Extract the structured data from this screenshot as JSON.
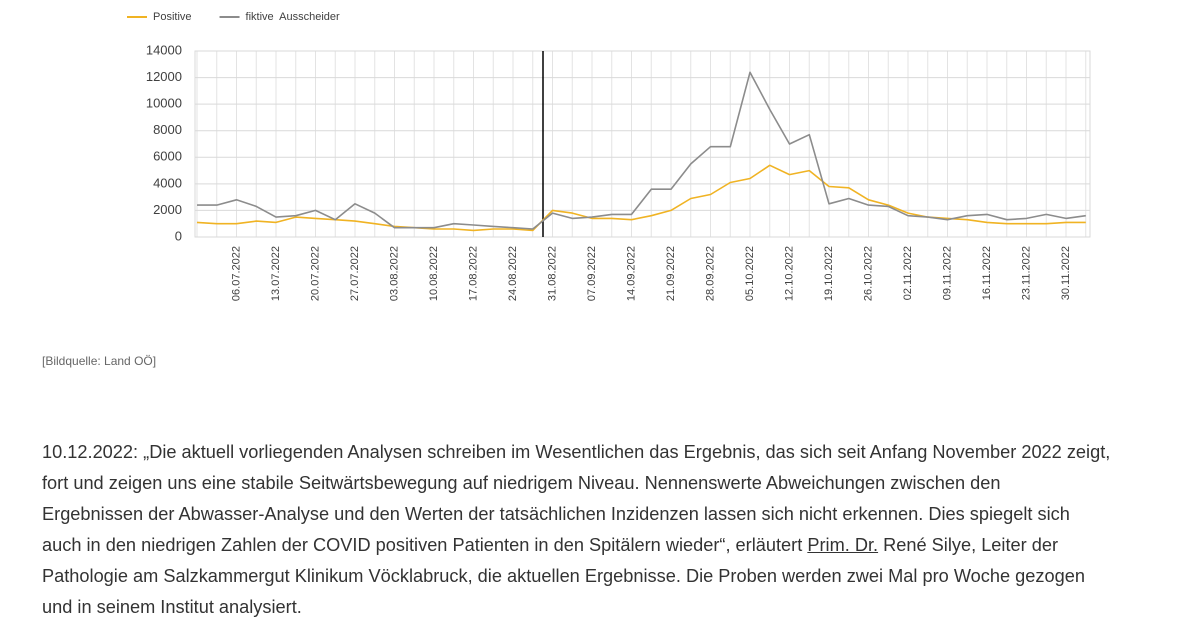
{
  "chart_data": {
    "type": "line",
    "categories": [
      null,
      null,
      "06.07.2022",
      null,
      "13.07.2022",
      null,
      "20.07.2022",
      null,
      "27.07.2022",
      null,
      "03.08.2022",
      null,
      "10.08.2022",
      null,
      "17.08.2022",
      null,
      "24.08.2022",
      null,
      "31.08.2022",
      null,
      "07.09.2022",
      null,
      "14.09.2022",
      null,
      "21.09.2022",
      null,
      "28.09.2022",
      null,
      "05.10.2022",
      null,
      "12.10.2022",
      null,
      "19.10.2022",
      null,
      "26.10.2022",
      null,
      "02.11.2022",
      null,
      "09.11.2022",
      null,
      "16.11.2022",
      null,
      "23.11.2022",
      null,
      "30.11.2022",
      null
    ],
    "series": [
      {
        "name": "Positive",
        "color": "#f0b323",
        "values": [
          1100,
          1000,
          1000,
          1200,
          1100,
          1500,
          1400,
          1300,
          1200,
          1000,
          800,
          700,
          600,
          600,
          500,
          600,
          600,
          500,
          2000,
          1800,
          1400,
          1400,
          1300,
          1600,
          2000,
          2900,
          3200,
          4100,
          4400,
          5400,
          4700,
          5000,
          3800,
          3700,
          2800,
          2400,
          1800,
          1500,
          1400,
          1300,
          1100,
          1000,
          1000,
          1000,
          1100,
          1100
        ]
      },
      {
        "name": "fiktive  Ausscheider",
        "color": "#8c8c8c",
        "values": [
          2400,
          2400,
          2800,
          2300,
          1500,
          1600,
          2000,
          1300,
          2500,
          1800,
          700,
          700,
          700,
          1000,
          900,
          800,
          700,
          600,
          1800,
          1400,
          1500,
          1700,
          1700,
          3600,
          3600,
          5500,
          6800,
          6800,
          12400,
          9600,
          7000,
          7700,
          2500,
          2900,
          2400,
          2300,
          1600,
          1500,
          1300,
          1600,
          1700,
          1300,
          1400,
          1700,
          1400,
          1600
        ]
      }
    ],
    "ylim": [
      0,
      14000
    ],
    "yticks": [
      0,
      2000,
      4000,
      6000,
      8000,
      10000,
      12000,
      14000
    ],
    "grid": true,
    "legend": "top"
  },
  "caption": "[Bildquelle: Land OÖ]",
  "paragraph": {
    "lines": [
      "10.12.2022: „Die aktuell vorliegenden Analysen schreiben im Wesentlichen das Ergebnis, das sich seit Anfang November 2022 zeigt,",
      "fort und zeigen uns eine stabile Seitwärtsbewegung auf niedrigem Niveau. Nennenswerte Abweichungen zwischen den",
      "Ergebnissen der Abwasser-Analyse und den Werten der tatsächlichen Inzidenzen lassen sich nicht erkennen. Dies spiegelt sich",
      [
        "auch in den niedrigen Zahlen der COVID positiven Patienten in den Spitälern wieder“, erläutert ",
        "Prim. Dr.",
        " René Silye, Leiter der"
      ],
      "Pathologie am Salzkammergut Klinikum Vöcklabruck, die aktuellen Ergebnisse. Die Proben werden zwei Mal pro Woche gezogen",
      "und in seinem Institut analysiert."
    ]
  }
}
